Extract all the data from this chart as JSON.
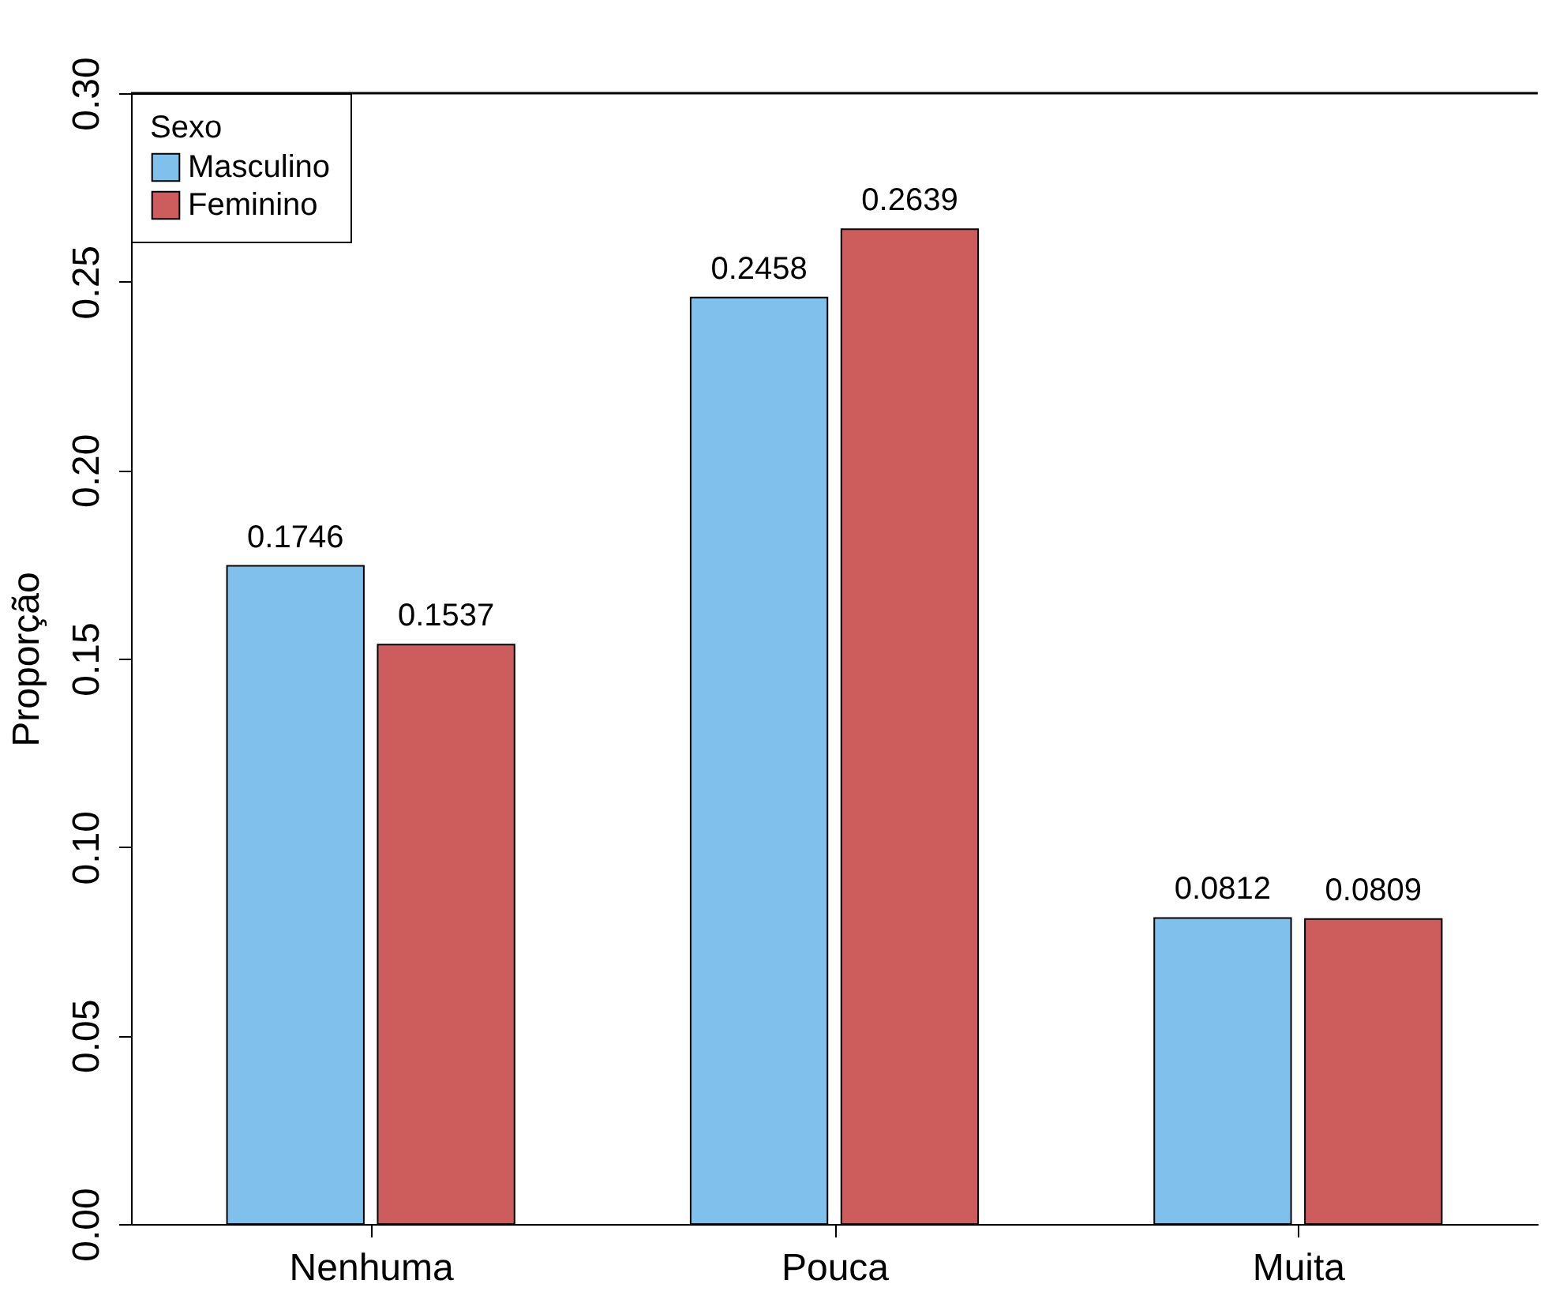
{
  "chart_data": {
    "type": "bar",
    "ylabel": "Proporção",
    "legend_title": "Sexo",
    "categories": [
      "Nenhuma",
      "Pouca",
      "Muita"
    ],
    "series": [
      {
        "name": "Masculino",
        "color": "#7fc0ed",
        "values": [
          0.1746,
          0.2458,
          0.0812
        ]
      },
      {
        "name": "Feminino",
        "color": "#cd5c5c",
        "values": [
          0.1537,
          0.2639,
          0.0809
        ]
      }
    ],
    "ylim": [
      0,
      0.3
    ],
    "yticks": [
      {
        "value": 0,
        "label": "0.00"
      },
      {
        "value": 0.05,
        "label": "0.05"
      },
      {
        "value": 0.1,
        "label": "0.10"
      },
      {
        "value": 0.15,
        "label": "0.15"
      },
      {
        "value": 0.2,
        "label": "0.20"
      },
      {
        "value": 0.25,
        "label": "0.25"
      },
      {
        "value": 0.3,
        "label": "0.30"
      }
    ],
    "ref_lines": [
      {
        "axis": "y",
        "value": 0.3
      }
    ],
    "data_labels": true,
    "grid": false,
    "legend": "top left"
  }
}
